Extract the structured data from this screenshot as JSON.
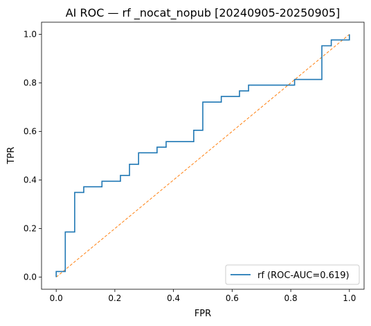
{
  "chart_data": {
    "type": "line",
    "title": "AI ROC — rf _nocat_nopub [20240905-20250905]",
    "xlabel": "FPR",
    "ylabel": "TPR",
    "xlim": [
      -0.05,
      1.05
    ],
    "ylim": [
      -0.05,
      1.05
    ],
    "xticks": [
      0.0,
      0.2,
      0.4,
      0.6,
      0.8,
      1.0
    ],
    "yticks": [
      0.0,
      0.2,
      0.4,
      0.6,
      0.8,
      1.0
    ],
    "xtick_labels": [
      "0.0",
      "0.2",
      "0.4",
      "0.6",
      "0.8",
      "1.0"
    ],
    "ytick_labels": [
      "0.0",
      "0.2",
      "0.4",
      "0.6",
      "0.8",
      "1.0"
    ],
    "grid": false,
    "legend_position": "lower-right",
    "series": [
      {
        "name": "rf (ROC-AUC=0.619)",
        "style": "step",
        "color": "#1f77b4",
        "x": [
          0.0,
          0.0,
          0.031,
          0.031,
          0.063,
          0.063,
          0.094,
          0.094,
          0.156,
          0.156,
          0.219,
          0.219,
          0.25,
          0.25,
          0.281,
          0.281,
          0.344,
          0.344,
          0.375,
          0.375,
          0.469,
          0.469,
          0.5,
          0.5,
          0.563,
          0.563,
          0.625,
          0.625,
          0.656,
          0.656,
          0.813,
          0.813,
          0.906,
          0.906,
          0.938,
          0.938,
          1.0,
          1.0
        ],
        "y": [
          0.0,
          0.023,
          0.023,
          0.186,
          0.186,
          0.349,
          0.349,
          0.372,
          0.372,
          0.395,
          0.395,
          0.419,
          0.419,
          0.465,
          0.465,
          0.512,
          0.512,
          0.535,
          0.535,
          0.558,
          0.558,
          0.605,
          0.605,
          0.721,
          0.721,
          0.744,
          0.744,
          0.767,
          0.767,
          0.791,
          0.791,
          0.814,
          0.814,
          0.953,
          0.953,
          0.977,
          0.977,
          1.0
        ]
      },
      {
        "style": "dashed",
        "color": "#ff7f0e",
        "x": [
          0.0,
          1.0
        ],
        "y": [
          0.0,
          1.0
        ]
      }
    ]
  }
}
